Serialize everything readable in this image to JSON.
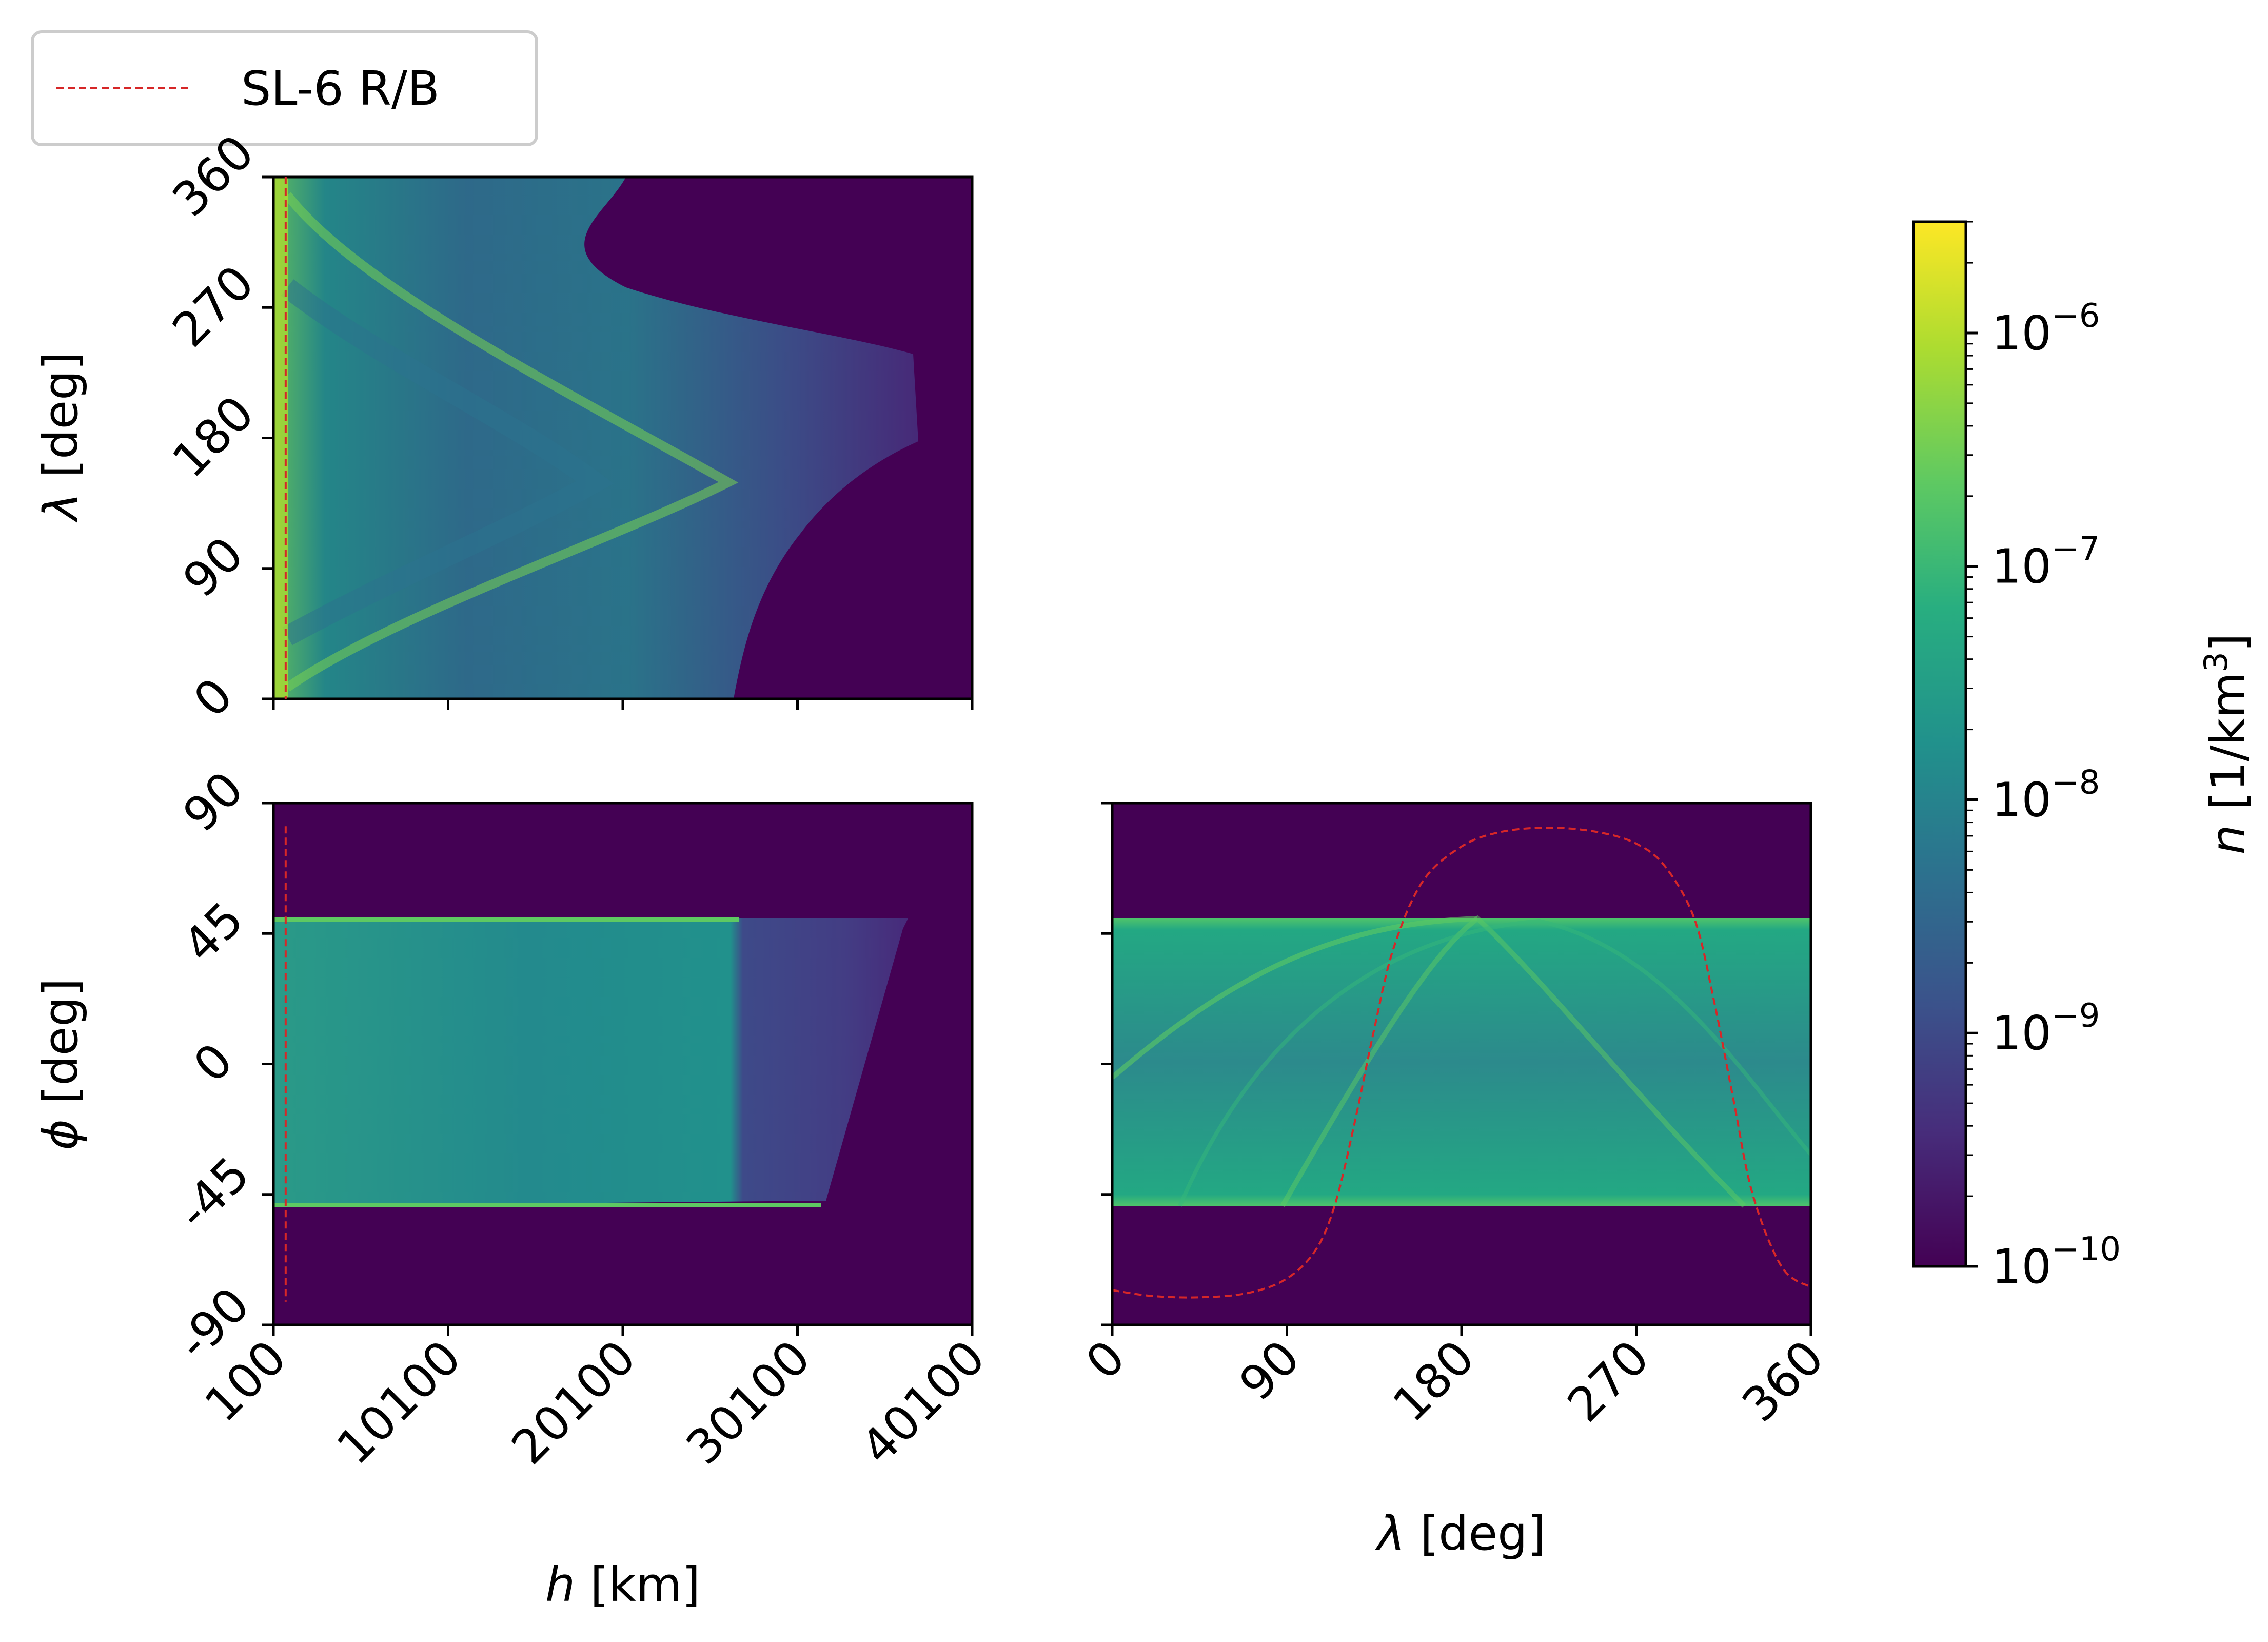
{
  "legend": {
    "entries": [
      {
        "label": "SL-6 R/B",
        "color": "#d62728",
        "style": "dashed"
      }
    ],
    "placement": "top-left"
  },
  "colorbar": {
    "label_var": "n",
    "label_unit_prefix": "[1/km",
    "label_unit_exp": "3",
    "label_unit_suffix": "]",
    "scale": "log",
    "range": [
      1e-10,
      3e-06
    ],
    "colormap": "viridis",
    "ticks": [
      {
        "base": "10",
        "exp": "−6",
        "value": 1e-06
      },
      {
        "base": "10",
        "exp": "−7",
        "value": 1e-07
      },
      {
        "base": "10",
        "exp": "−8",
        "value": 1e-08
      },
      {
        "base": "10",
        "exp": "−9",
        "value": 1e-09
      },
      {
        "base": "10",
        "exp": "−10",
        "value": 1e-10
      }
    ]
  },
  "chart_data": [
    {
      "type": "heatmap",
      "panel": "top-left",
      "x_var": "h",
      "x_unit": "[km]",
      "y_var": "λ",
      "y_unit": "[deg]",
      "xlim": [
        100,
        40100
      ],
      "ylim": [
        0,
        360
      ],
      "x_ticks": [
        100,
        10100,
        20100,
        30100,
        40100
      ],
      "x_ticklabels_shown": false,
      "y_ticks": [
        "0",
        "90",
        "180",
        "270",
        "360"
      ],
      "y_tick_values": [
        0,
        90,
        180,
        270,
        360
      ],
      "ylabel_var": "λ",
      "ylabel_unit": "[deg]",
      "reference_line": {
        "series": "SL-6 R/B",
        "x": 800
      }
    },
    {
      "type": "heatmap",
      "panel": "bottom-left",
      "xlim": [
        100,
        40100
      ],
      "ylim": [
        -90,
        90
      ],
      "x_ticks": [
        "100",
        "10100",
        "20100",
        "30100",
        "40100"
      ],
      "x_tick_values": [
        100,
        10100,
        20100,
        30100,
        40100
      ],
      "y_ticks": [
        "-90",
        "-45",
        "0",
        "45",
        "90"
      ],
      "y_tick_values": [
        -90,
        -45,
        0,
        45,
        90
      ],
      "xlabel_var": "h",
      "xlabel_unit": "[km]",
      "ylabel_var": "ϕ",
      "ylabel_unit": "[deg]",
      "band_lat": [
        -50,
        50
      ],
      "reference_line": {
        "series": "SL-6 R/B",
        "x": 800,
        "y_range": [
          -82,
          82
        ]
      }
    },
    {
      "type": "heatmap",
      "panel": "bottom-right",
      "xlim": [
        0,
        360
      ],
      "ylim": [
        -90,
        90
      ],
      "x_ticks": [
        "0",
        "90",
        "180",
        "270",
        "360"
      ],
      "x_tick_values": [
        0,
        90,
        180,
        270,
        360
      ],
      "y_ticklabels_shown": false,
      "xlabel_var": "λ",
      "xlabel_unit": "[deg]",
      "band_lat": [
        -50,
        50
      ],
      "reference_curve": {
        "series": "SL-6 R/B",
        "x": [
          0,
          20,
          45,
          70,
          90,
          105,
          115,
          125,
          135,
          145,
          160,
          180,
          200,
          225,
          250,
          270,
          285,
          300,
          310,
          320,
          330,
          345,
          360
        ],
        "y": [
          -78,
          -80,
          -80.5,
          -79,
          -74,
          -64,
          -48,
          -20,
          12,
          40,
          63,
          75,
          80,
          81.5,
          80,
          76,
          68,
          50,
          22,
          -12,
          -45,
          -70,
          -77
        ]
      }
    }
  ]
}
